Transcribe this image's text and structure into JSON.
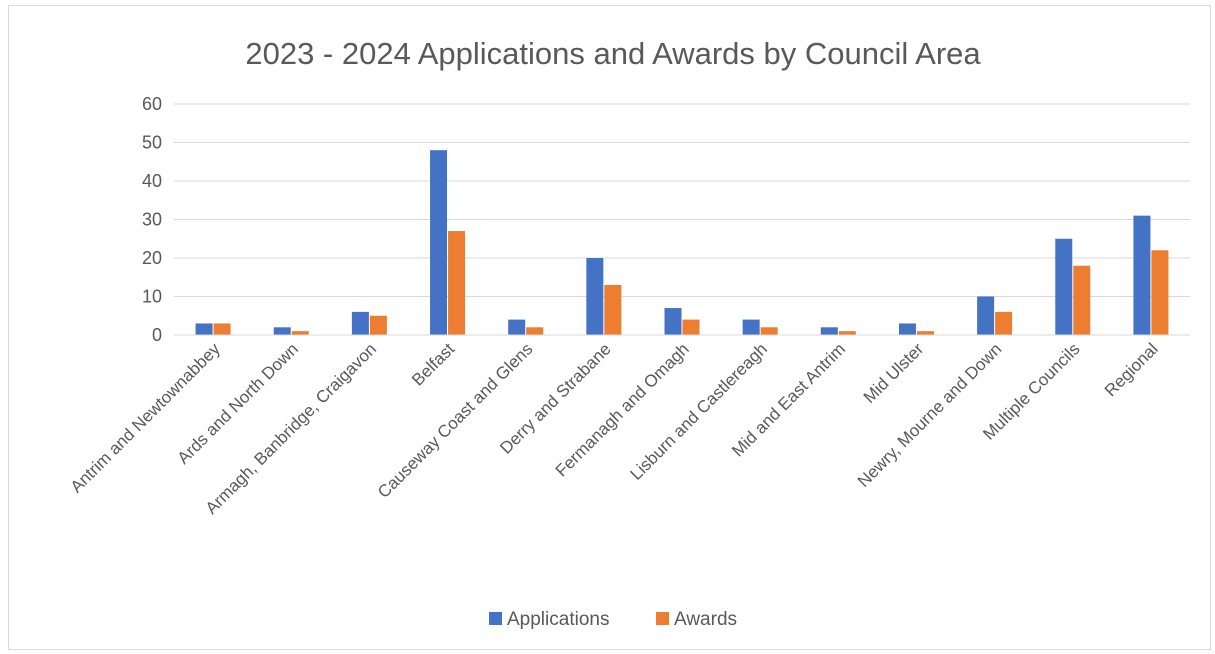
{
  "chart_data": {
    "type": "bar",
    "title": "2023 - 2024 Applications and Awards by Council Area",
    "xlabel": "",
    "ylabel": "",
    "ylim": [
      0,
      60
    ],
    "yticks": [
      0,
      10,
      20,
      30,
      40,
      50,
      60
    ],
    "grid": true,
    "legend_position": "bottom",
    "categories": [
      "Antrim and Newtownabbey",
      "Ards and North Down",
      "Armagh, Banbridge, Craigavon",
      "Belfast",
      "Causeway Coast and Glens",
      "Derry and Strabane",
      "Fermanagh and Omagh",
      "Lisburn and Castlereagh",
      "Mid and East Antrim",
      "Mid Ulster",
      "Newry, Mourne and Down",
      "Multiple Councils",
      "Regional"
    ],
    "series": [
      {
        "name": "Applications",
        "color": "#4472c4",
        "values": [
          3,
          2,
          6,
          48,
          4,
          20,
          7,
          4,
          2,
          3,
          10,
          25,
          31
        ]
      },
      {
        "name": "Awards",
        "color": "#ed7d31",
        "values": [
          3,
          1,
          5,
          27,
          2,
          13,
          4,
          2,
          1,
          1,
          6,
          18,
          22
        ]
      }
    ]
  }
}
